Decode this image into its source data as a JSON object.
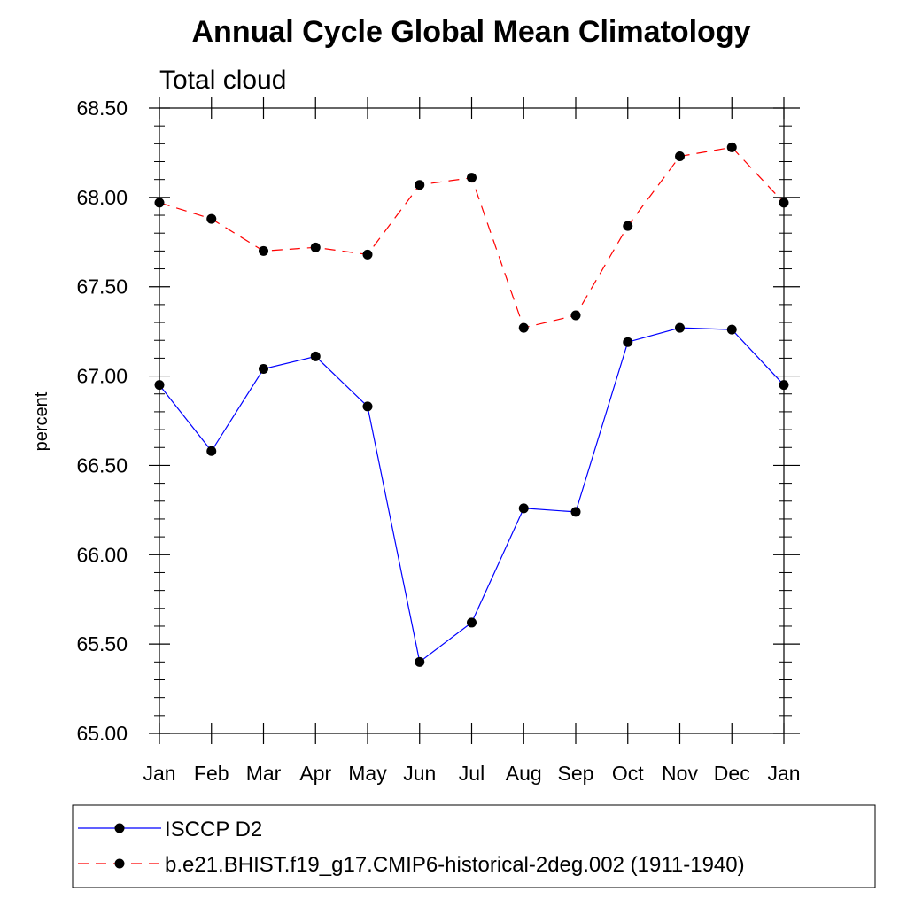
{
  "chart_data": {
    "type": "line",
    "title": "Annual Cycle Global Mean Climatology",
    "subtitle": "Total cloud",
    "ylabel": "percent",
    "xlabel": "",
    "categories": [
      "Jan",
      "Feb",
      "Mar",
      "Apr",
      "May",
      "Jun",
      "Jul",
      "Aug",
      "Sep",
      "Oct",
      "Nov",
      "Dec",
      "Jan"
    ],
    "ylim": [
      65.0,
      68.5
    ],
    "yticks": [
      "65.00",
      "65.50",
      "66.00",
      "66.50",
      "67.00",
      "67.50",
      "68.00",
      "68.50"
    ],
    "grid": false,
    "legend_position": "bottom",
    "series": [
      {
        "name": "ISCCP D2",
        "color": "#0000ff",
        "line_style": "solid",
        "marker": "filled-circle",
        "values": [
          66.95,
          66.58,
          67.04,
          67.11,
          66.83,
          65.4,
          65.62,
          66.26,
          66.24,
          67.19,
          67.27,
          67.26,
          66.95
        ]
      },
      {
        "name": "b.e21.BHIST.f19_g17.CMIP6-historical-2deg.002 (1911-1940)",
        "color": "#ff0000",
        "line_style": "dashed",
        "marker": "filled-circle",
        "values": [
          67.97,
          67.88,
          67.7,
          67.72,
          67.68,
          68.07,
          68.11,
          67.27,
          67.34,
          67.84,
          68.23,
          68.28,
          67.97
        ]
      }
    ]
  }
}
